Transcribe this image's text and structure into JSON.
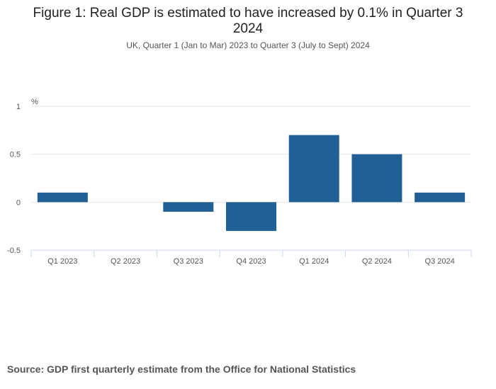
{
  "chart_data": {
    "type": "bar",
    "title": "Figure 1: Real GDP is estimated to have increased by 0.1% in Quarter 3 2024",
    "subtitle": "UK, Quarter 1 (Jan to Mar) 2023 to Quarter 3 (July to Sept) 2024",
    "categories": [
      "Q1 2023",
      "Q2 2023",
      "Q3 2023",
      "Q4 2023",
      "Q1 2024",
      "Q2 2024",
      "Q3 2024"
    ],
    "values": [
      0.1,
      0.0,
      -0.1,
      -0.3,
      0.7,
      0.5,
      0.1
    ],
    "ylabel": "%",
    "xlabel": "",
    "ylim": [
      -0.5,
      1
    ],
    "yticks": [
      -0.5,
      0,
      0.5,
      1
    ],
    "ytick_labels": [
      "-0.5",
      "0",
      "0.5",
      "1"
    ],
    "grid": true,
    "bar_color": "#206095"
  },
  "source": "Source: GDP first quarterly estimate from the Office for National Statistics"
}
